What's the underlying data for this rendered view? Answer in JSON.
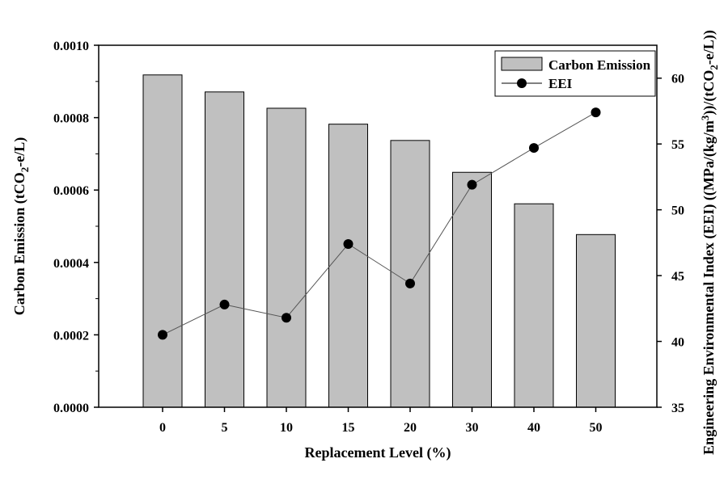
{
  "chart_data": {
    "type": "bar+line",
    "categories": [
      "0",
      "5",
      "10",
      "15",
      "20",
      "30",
      "40",
      "50"
    ],
    "series": [
      {
        "name": "Carbon Emission",
        "type": "bar",
        "axis": "left",
        "color": "#c0c0c0",
        "values": [
          0.000918,
          0.000871,
          0.000826,
          0.000782,
          0.000737,
          0.000649,
          0.000562,
          0.000477
        ]
      },
      {
        "name": "EEI",
        "type": "line",
        "axis": "right",
        "color": "#000000",
        "values": [
          40.5,
          42.8,
          41.8,
          47.4,
          44.4,
          51.9,
          54.7,
          57.4
        ]
      }
    ],
    "xlabel": "Replacement Level (%)",
    "ylabel_left": {
      "pre": "Carbon Emission (tCO",
      "sub": "2",
      "post": "-e/L)"
    },
    "ylabel_right": {
      "pre": "Engineering Environmental Index (EEI) ((MPa/(kg/m",
      "sup": "3",
      "mid": "))/(tCO",
      "sub": "2",
      "post": "-e/L))"
    },
    "ylim_left": [
      0,
      0.001
    ],
    "ylim_right": [
      35,
      62.5
    ],
    "yticks_left": [
      "0.0000",
      "0.0002",
      "0.0004",
      "0.0006",
      "0.0008",
      "0.0010"
    ],
    "yticks_left_values": [
      0,
      0.0002,
      0.0004,
      0.0006,
      0.0008,
      0.001
    ],
    "yticks_right": [
      "35",
      "40",
      "45",
      "50",
      "55",
      "60"
    ],
    "yticks_right_values": [
      35,
      40,
      45,
      50,
      55,
      60
    ],
    "legend": {
      "position": "top-right",
      "entries": [
        "Carbon Emission",
        "EEI"
      ]
    },
    "grid": false
  }
}
